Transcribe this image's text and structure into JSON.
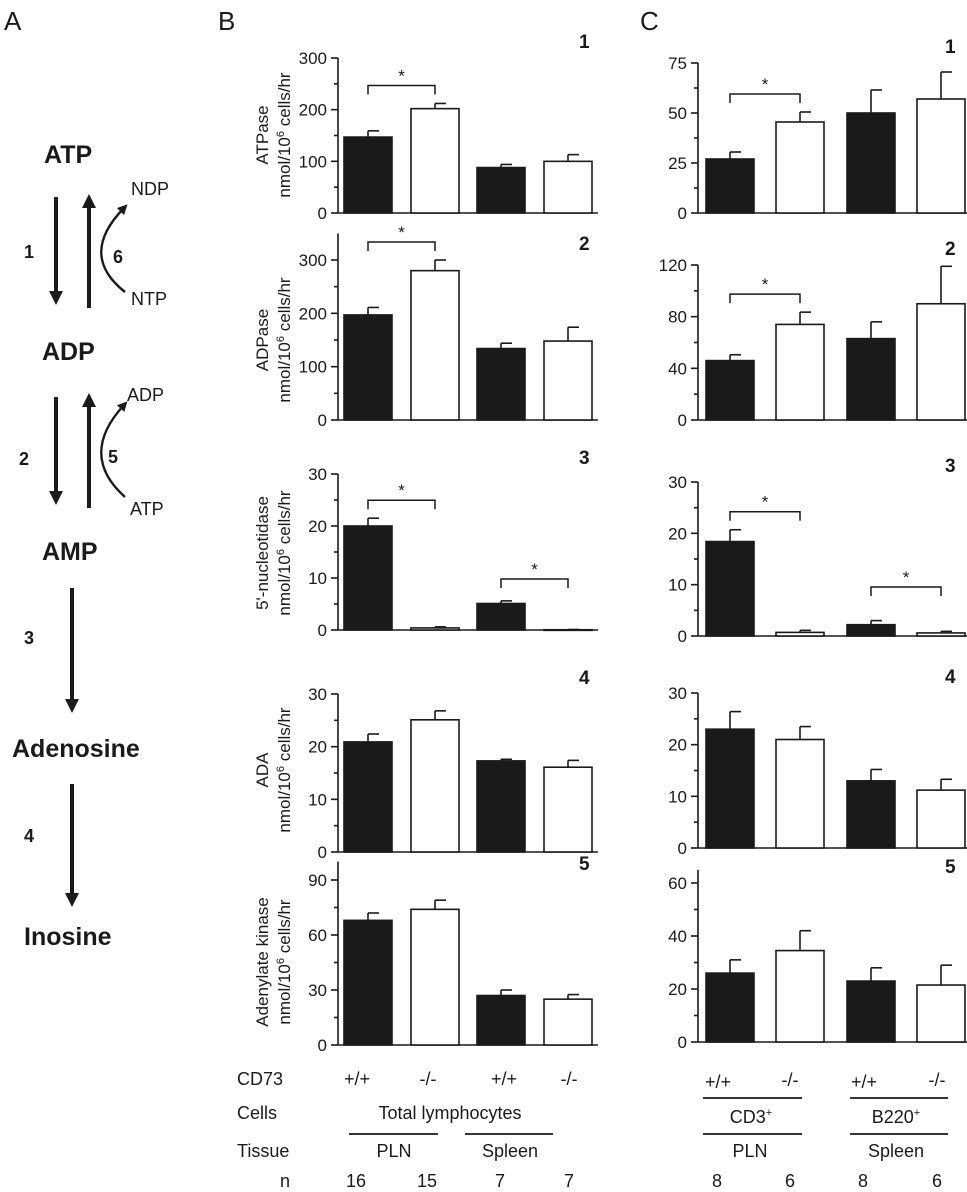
{
  "panel_letters": {
    "a": "A",
    "b": "B",
    "c": "C"
  },
  "pathway": {
    "atp": "ATP",
    "adp": "ADP",
    "amp": "AMP",
    "adenosine": "Adenosine",
    "inosine": "Inosine",
    "step1": "1",
    "step2": "2",
    "step3": "3",
    "step4": "4",
    "step5": "5",
    "step6": "6",
    "ndp": "NDP",
    "ntp": "NTP",
    "side_adp": "ADP",
    "side_atp": "ATP"
  },
  "significance_marker": "*",
  "unit_lines": [
    "nmol/10",
    "6",
    " cells/hr"
  ],
  "table": {
    "row_cd73": "CD73",
    "row_cells": "Cells",
    "row_tissue": "Tissue",
    "row_n": "n",
    "B": {
      "genotypes": [
        "+/+",
        "-/-",
        "+/+",
        "-/-"
      ],
      "cells": "Total lymphocytes",
      "tissues": [
        "PLN",
        "Spleen"
      ],
      "n": [
        "16",
        "15",
        "7",
        "7"
      ]
    },
    "C": {
      "genotypes": [
        "+/+",
        "-/-",
        "+/+",
        "-/-"
      ],
      "cells": [
        "CD3",
        "B220"
      ],
      "cells_sup": [
        "+",
        "+"
      ],
      "tissues": [
        "PLN",
        "Spleen"
      ],
      "n": [
        "8",
        "6",
        "8",
        "6"
      ]
    }
  },
  "colors": {
    "filled_bar": "#1a1a1a",
    "open_bar": "#ffffff",
    "stroke": "#1a1a1a"
  },
  "chart_data": [
    {
      "panel": "B",
      "row": "1",
      "type": "bar",
      "ylabel": "ATPase",
      "ylim": [
        0,
        300
      ],
      "yticks": [
        0,
        100,
        200,
        300
      ],
      "series": [
        {
          "name": "",
          "values": [
            147,
            202,
            88,
            100
          ],
          "errors": [
            12,
            10,
            6,
            13
          ]
        }
      ],
      "fills": [
        "filled",
        "open",
        "filled",
        "open"
      ],
      "significance": [
        [
          0,
          1
        ]
      ]
    },
    {
      "panel": "B",
      "row": "2",
      "type": "bar",
      "ylabel": "ADPase",
      "ylim": [
        0,
        350
      ],
      "yticks": [
        0,
        100,
        200,
        300
      ],
      "series": [
        {
          "name": "",
          "values": [
            197,
            280,
            134,
            148
          ],
          "errors": [
            14,
            20,
            10,
            26
          ]
        }
      ],
      "fills": [
        "filled",
        "open",
        "filled",
        "open"
      ],
      "significance": [
        [
          0,
          1
        ]
      ]
    },
    {
      "panel": "B",
      "row": "3",
      "type": "bar",
      "ylabel": "5'-nucleotidase",
      "ylim": [
        0,
        30
      ],
      "yticks": [
        0,
        10,
        20,
        30
      ],
      "series": [
        {
          "name": "",
          "values": [
            20.0,
            0.4,
            5.1,
            0.05
          ],
          "errors": [
            1.5,
            0.2,
            0.5,
            0.05
          ]
        }
      ],
      "fills": [
        "filled",
        "open",
        "filled",
        "open"
      ],
      "significance": [
        [
          0,
          1
        ],
        [
          2,
          3
        ]
      ]
    },
    {
      "panel": "B",
      "row": "4",
      "type": "bar",
      "ylabel": "ADA",
      "ylim": [
        0,
        30
      ],
      "yticks": [
        0,
        10,
        20,
        30
      ],
      "series": [
        {
          "name": "",
          "values": [
            20.9,
            25.1,
            17.3,
            16.1
          ],
          "errors": [
            1.5,
            1.7,
            0.3,
            1.3
          ]
        }
      ],
      "fills": [
        "filled",
        "open",
        "filled",
        "open"
      ],
      "significance": []
    },
    {
      "panel": "B",
      "row": "5",
      "type": "bar",
      "ylabel": "Adenylate kinase",
      "ylim": [
        0,
        100
      ],
      "yticks": [
        0,
        30,
        60,
        90
      ],
      "series": [
        {
          "name": "",
          "values": [
            68,
            74,
            27,
            25
          ],
          "errors": [
            4,
            5,
            3,
            2.5
          ]
        }
      ],
      "fills": [
        "filled",
        "open",
        "filled",
        "open"
      ],
      "significance": []
    },
    {
      "panel": "C",
      "row": "1",
      "type": "bar",
      "ylabel": "",
      "ylim": [
        0,
        75
      ],
      "yticks": [
        0,
        25,
        50,
        75
      ],
      "series": [
        {
          "name": "",
          "values": [
            27,
            45.5,
            50,
            57
          ],
          "errors": [
            3.5,
            5,
            11.5,
            13.5
          ]
        }
      ],
      "fills": [
        "filled",
        "open",
        "filled",
        "open"
      ],
      "significance": [
        [
          0,
          1
        ]
      ]
    },
    {
      "panel": "C",
      "row": "2",
      "type": "bar",
      "ylabel": "",
      "ylim": [
        0,
        120
      ],
      "yticks": [
        0,
        40,
        80,
        120
      ],
      "series": [
        {
          "name": "",
          "values": [
            46,
            74,
            63,
            90
          ],
          "errors": [
            4.5,
            9.5,
            13,
            29
          ]
        }
      ],
      "fills": [
        "filled",
        "open",
        "filled",
        "open"
      ],
      "significance": [
        [
          0,
          1
        ]
      ]
    },
    {
      "panel": "C",
      "row": "3",
      "type": "bar",
      "ylabel": "",
      "ylim": [
        0,
        30
      ],
      "yticks": [
        0,
        10,
        20,
        30
      ],
      "series": [
        {
          "name": "",
          "values": [
            18.4,
            0.7,
            2.2,
            0.6
          ],
          "errors": [
            2.3,
            0.4,
            0.8,
            0.3
          ]
        }
      ],
      "fills": [
        "filled",
        "open",
        "filled",
        "open"
      ],
      "significance": [
        [
          0,
          1
        ],
        [
          2,
          3
        ]
      ]
    },
    {
      "panel": "C",
      "row": "4",
      "type": "bar",
      "ylabel": "",
      "ylim": [
        0,
        30
      ],
      "yticks": [
        0,
        10,
        20,
        30
      ],
      "series": [
        {
          "name": "",
          "values": [
            23,
            21,
            13,
            11.2
          ],
          "errors": [
            3.4,
            2.5,
            2.2,
            2.1
          ]
        }
      ],
      "fills": [
        "filled",
        "open",
        "filled",
        "open"
      ],
      "significance": []
    },
    {
      "panel": "C",
      "row": "5",
      "type": "bar",
      "ylabel": "",
      "ylim": [
        0,
        65
      ],
      "yticks": [
        0,
        20,
        40,
        60
      ],
      "series": [
        {
          "name": "",
          "values": [
            26,
            34.5,
            23,
            21.5
          ],
          "errors": [
            5,
            7.5,
            5,
            7.5
          ]
        }
      ],
      "fills": [
        "filled",
        "open",
        "filled",
        "open"
      ],
      "significance": []
    }
  ]
}
